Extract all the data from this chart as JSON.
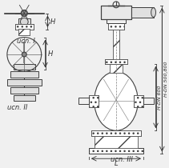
{
  "bg_color": "#f0f0f0",
  "line_color": "#404040",
  "dim_color": "#303030",
  "title": "",
  "labels": {
    "isp1": "ucn. I",
    "isp2": "ucn. II",
    "isp3": "ucn. III",
    "H1": "H",
    "H2": "H",
    "L": "L",
    "dim1": "H-DN 600",
    "dim2": "H-DN 500,800"
  },
  "figsize": [
    2.11,
    2.1
  ],
  "dpi": 100
}
